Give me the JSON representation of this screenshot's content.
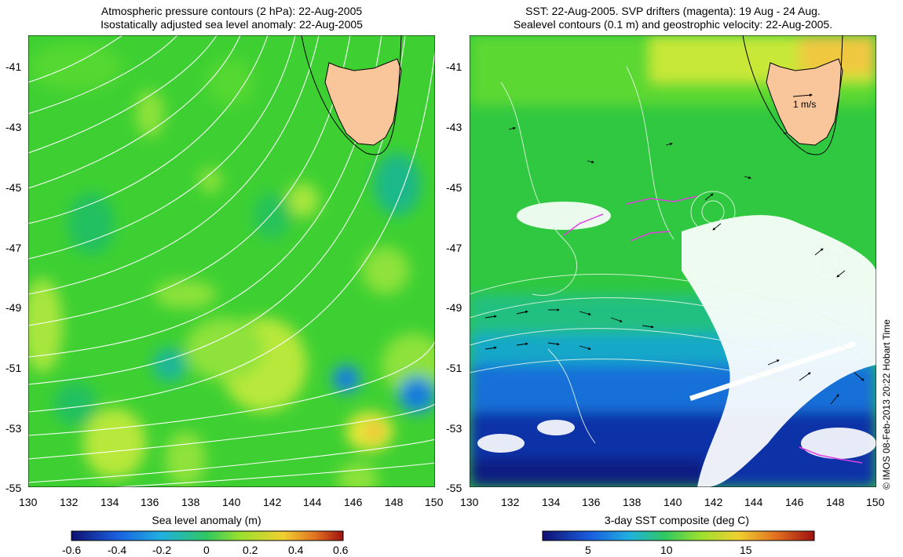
{
  "left_panel": {
    "title_line1": "Atmospheric pressure contours (2 hPa): 22-Aug-2005",
    "title_line2": "Isostatically adjusted sea level anomaly: 22-Aug-2005",
    "colorbar_label": "Sea level anomaly (m)",
    "colorbar_ticks": [
      "-0.6",
      "-0.4",
      "-0.2",
      "0",
      "0.2",
      "0.4",
      "0.6"
    ]
  },
  "right_panel": {
    "title_line1": "SST: 22-Aug-2005. SVP drifters (magenta): 19 Aug - 24 Aug.",
    "title_line2": "Sealevel contours (0.1 m) and geostrophic velocity: 22-Aug-2005.",
    "colorbar_label": "3-day SST composite (deg C)",
    "colorbar_ticks": [
      "5",
      "10",
      "15"
    ],
    "velocity_scale_label": "1 m/s"
  },
  "axes": {
    "lat_ticks": [
      "-41",
      "-43",
      "-45",
      "-47",
      "-49",
      "-51",
      "-53",
      "-55"
    ],
    "lon_ticks": [
      "130",
      "132",
      "134",
      "136",
      "138",
      "140",
      "142",
      "144",
      "146",
      "148",
      "150"
    ]
  },
  "credit": "© IMOS 08-Feb-2013 20:22 Hobart Time",
  "colors": {
    "land": "#f9c59a",
    "ocean_green": "#3ad430",
    "contour": "#ffffff",
    "drifter": "#e040e0"
  }
}
